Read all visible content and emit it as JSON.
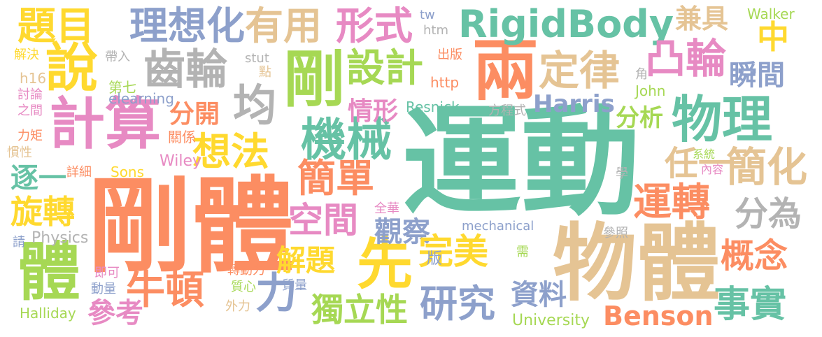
{
  "palette": {
    "green": "#66c2a5",
    "orange": "#fc8d62",
    "blue": "#8da0cb",
    "pink": "#e78ac3",
    "lime": "#a6d854",
    "yellow": "#ffd92f",
    "tan": "#e5c494",
    "gray": "#b3b3b3"
  },
  "words": [
    {
      "text": "運動",
      "color": "#66c2a5"
    },
    {
      "text": "剛體",
      "color": "#fc8d62"
    },
    {
      "text": "物體",
      "color": "#e5c494"
    },
    {
      "text": "兩",
      "color": "#fc8d62"
    },
    {
      "text": "計算",
      "color": "#e78ac3"
    },
    {
      "text": "物理",
      "color": "#66c2a5"
    },
    {
      "text": "剛",
      "color": "#a6d854"
    },
    {
      "text": "說",
      "color": "#ffd92f"
    },
    {
      "text": "體",
      "color": "#a6d854"
    },
    {
      "text": "先",
      "color": "#ffd92f"
    },
    {
      "text": "題目",
      "color": "#ffd92f"
    },
    {
      "text": "理想化",
      "color": "#8da0cb"
    },
    {
      "text": "有用",
      "color": "#e5c494"
    },
    {
      "text": "形式",
      "color": "#e78ac3"
    },
    {
      "text": "RigidBody",
      "color": "#66c2a5"
    },
    {
      "text": "齒輪",
      "color": "#b3b3b3"
    },
    {
      "text": "設計",
      "color": "#a6d854"
    },
    {
      "text": "定律",
      "color": "#e5c494"
    },
    {
      "text": "凸輪",
      "color": "#e78ac3"
    },
    {
      "text": "瞬間",
      "color": "#8da0cb"
    },
    {
      "text": "均",
      "color": "#b3b3b3"
    },
    {
      "text": "機械",
      "color": "#66c2a5"
    },
    {
      "text": "想法",
      "color": "#ffd92f"
    },
    {
      "text": "簡單",
      "color": "#fc8d62"
    },
    {
      "text": "任一",
      "color": "#e5c494"
    },
    {
      "text": "簡化",
      "color": "#e5c494"
    },
    {
      "text": "運轉",
      "color": "#fc8d62"
    },
    {
      "text": "分為",
      "color": "#b3b3b3"
    },
    {
      "text": "旋轉",
      "color": "#ffd92f"
    },
    {
      "text": "逐一",
      "color": "#66c2a5"
    },
    {
      "text": "空間",
      "color": "#e78ac3"
    },
    {
      "text": "觀察",
      "color": "#8da0cb"
    },
    {
      "text": "完美",
      "color": "#ffd92f"
    },
    {
      "text": "解題",
      "color": "#ffd92f"
    },
    {
      "text": "概念",
      "color": "#fc8d62"
    },
    {
      "text": "牛頓",
      "color": "#fc8d62"
    },
    {
      "text": "力",
      "color": "#8da0cb"
    },
    {
      "text": "研究",
      "color": "#8da0cb"
    },
    {
      "text": "資料",
      "color": "#8da0cb"
    },
    {
      "text": "獨立性",
      "color": "#a6d854"
    },
    {
      "text": "事實",
      "color": "#66c2a5"
    },
    {
      "text": "Benson",
      "color": "#fc8d62"
    },
    {
      "text": "參考",
      "color": "#e78ac3"
    },
    {
      "text": "Harris",
      "color": "#8da0cb"
    },
    {
      "text": "分析",
      "color": "#a6d854"
    },
    {
      "text": "分開",
      "color": "#fc8d62"
    },
    {
      "text": "情形",
      "color": "#e78ac3"
    },
    {
      "text": "兼具",
      "color": "#e5c494"
    },
    {
      "text": "中",
      "color": "#ffd92f"
    },
    {
      "text": "Walker",
      "color": "#a6d854"
    },
    {
      "text": "tw",
      "color": "#8da0cb"
    },
    {
      "text": "htm",
      "color": "#b3b3b3"
    },
    {
      "text": "出版",
      "color": "#fc8d62"
    },
    {
      "text": "http",
      "color": "#fc8d62"
    },
    {
      "text": "Resnick",
      "color": "#66c2a5"
    },
    {
      "text": "方程式",
      "color": "#b3b3b3"
    },
    {
      "text": "角",
      "color": "#b3b3b3"
    },
    {
      "text": "John",
      "color": "#a6d854"
    },
    {
      "text": "系統",
      "color": "#a6d854"
    },
    {
      "text": "內容",
      "color": "#e78ac3"
    },
    {
      "text": "學",
      "color": "#b3b3b3"
    },
    {
      "text": "mechanical",
      "color": "#8da0cb"
    },
    {
      "text": "參照",
      "color": "#b3b3b3"
    },
    {
      "text": "全華",
      "color": "#e78ac3"
    },
    {
      "text": "需",
      "color": "#a6d854"
    },
    {
      "text": "版",
      "color": "#8da0cb"
    },
    {
      "text": "University",
      "color": "#a6d854"
    },
    {
      "text": "解決",
      "color": "#ffd92f"
    },
    {
      "text": "帶入",
      "color": "#b3b3b3"
    },
    {
      "text": "stut",
      "color": "#b3b3b3"
    },
    {
      "text": "點",
      "color": "#e5c494"
    },
    {
      "text": "h16",
      "color": "#e5c494"
    },
    {
      "text": "第七",
      "color": "#a6d854"
    },
    {
      "text": "討論",
      "color": "#e78ac3"
    },
    {
      "text": "之間",
      "color": "#e78ac3"
    },
    {
      "text": "elearning",
      "color": "#8da0cb"
    },
    {
      "text": "力矩",
      "color": "#fc8d62"
    },
    {
      "text": "關係",
      "color": "#fc8d62"
    },
    {
      "text": "慣性",
      "color": "#e5c494"
    },
    {
      "text": "詳細",
      "color": "#fc8d62"
    },
    {
      "text": "Sons",
      "color": "#ffd92f"
    },
    {
      "text": "Wiley",
      "color": "#e78ac3"
    },
    {
      "text": "Physics",
      "color": "#b3b3b3"
    },
    {
      "text": "請",
      "color": "#8da0cb"
    },
    {
      "text": "即可",
      "color": "#e78ac3"
    },
    {
      "text": "轉動力",
      "color": "#fc8d62"
    },
    {
      "text": "動量",
      "color": "#8da0cb"
    },
    {
      "text": "質心",
      "color": "#a6d854"
    },
    {
      "text": "質量",
      "color": "#8da0cb"
    },
    {
      "text": "Halliday",
      "color": "#a6d854"
    },
    {
      "text": "外力",
      "color": "#e5c494"
    }
  ]
}
